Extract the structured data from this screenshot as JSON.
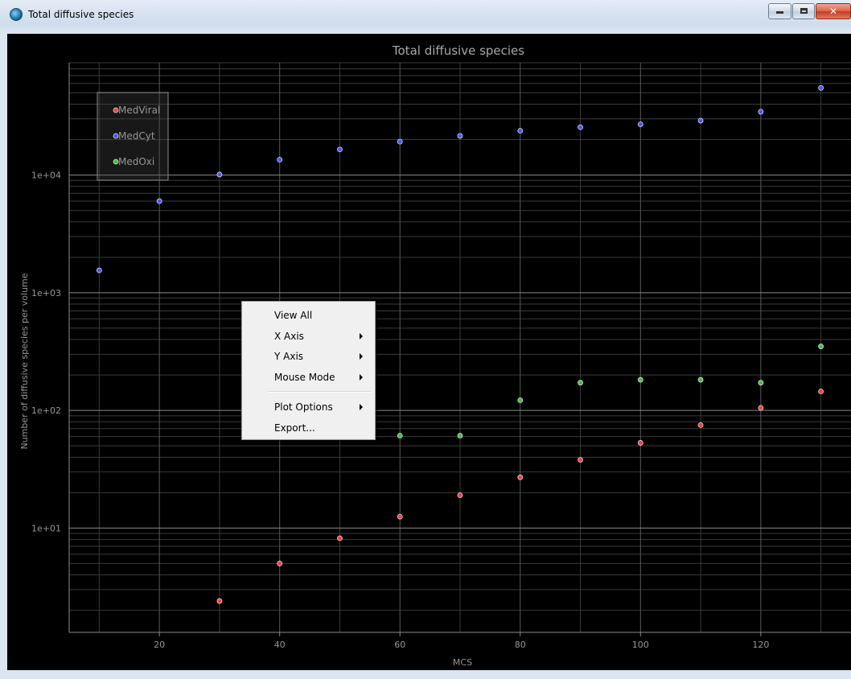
{
  "window": {
    "title": "Total diffusive species",
    "min_glyph": "minimize-glyph",
    "max_glyph": "maximize-glyph",
    "close_glyph": "✕"
  },
  "context_menu": {
    "items": [
      {
        "label": "View All",
        "submenu": false
      },
      {
        "label": "X Axis",
        "submenu": true
      },
      {
        "label": "Y Axis",
        "submenu": true
      },
      {
        "label": "Mouse Mode",
        "submenu": true
      },
      {
        "label": "Plot Options",
        "submenu": true
      },
      {
        "label": "Export...",
        "submenu": false
      }
    ]
  },
  "chart_data": {
    "type": "scatter",
    "title": "Total diffusive species",
    "xlabel": "MCS",
    "ylabel": "Number of diffusive species per volume",
    "xlim": [
      5,
      135
    ],
    "ylim": [
      1.3,
      90000
    ],
    "y_scale": "log",
    "grid": true,
    "legend_position": "top-left",
    "x_ticks": [
      20,
      40,
      60,
      80,
      100,
      120
    ],
    "y_ticks": [
      {
        "value": 10,
        "label": "1e+01"
      },
      {
        "value": 100,
        "label": "1e+02"
      },
      {
        "value": 1000,
        "label": "1e+03"
      },
      {
        "value": 10000,
        "label": "1e+04"
      }
    ],
    "series": [
      {
        "name": "MedViral",
        "color": "#ff3a3a",
        "x": [
          30,
          40,
          50,
          60,
          70,
          80,
          90,
          100,
          110,
          120,
          130
        ],
        "y": [
          2.4,
          5.0,
          8.2,
          12.5,
          19,
          27,
          38,
          53,
          75,
          105,
          145
        ]
      },
      {
        "name": "MedCyt",
        "color": "#4a52ff",
        "x": [
          10,
          20,
          30,
          40,
          50,
          60,
          70,
          80,
          90,
          100,
          110,
          120,
          130
        ],
        "y": [
          1550,
          6000,
          10100,
          13500,
          16500,
          19200,
          21500,
          23800,
          25500,
          27000,
          29000,
          34500,
          55000
        ]
      },
      {
        "name": "MedOxi",
        "color": "#3ec43e",
        "x": [
          60,
          70,
          80,
          90,
          100,
          110,
          120,
          130
        ],
        "y": [
          61,
          61,
          122,
          172,
          182,
          182,
          172,
          350
        ]
      }
    ]
  }
}
